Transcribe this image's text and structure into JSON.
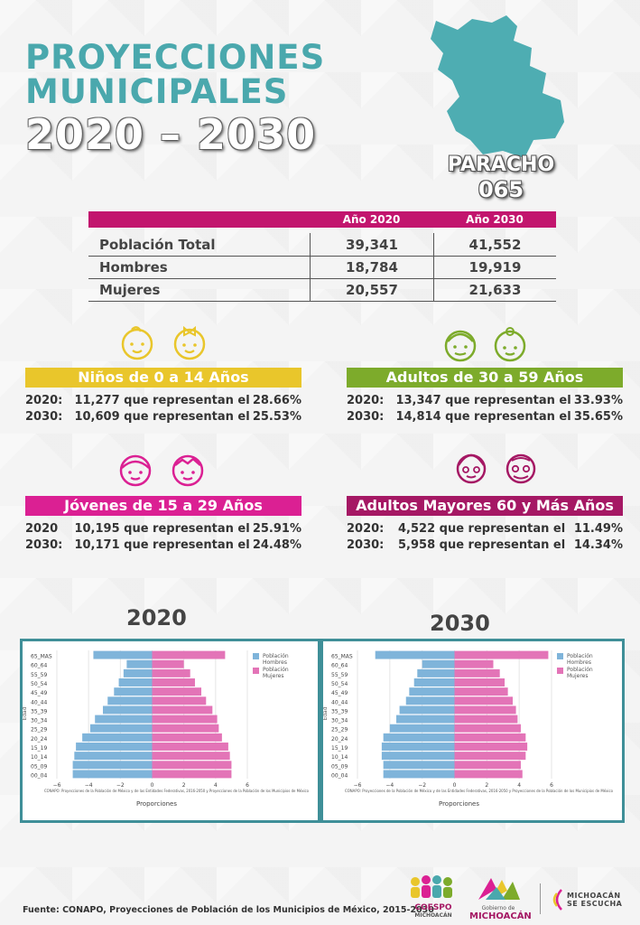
{
  "header": {
    "title_line1": "PROYECCIONES",
    "title_line2": "MUNICIPALES",
    "title_line3": "2020 – 2030"
  },
  "municipality": {
    "name": "PARACHO",
    "code": "065"
  },
  "population_table": {
    "col_2020": "Año 2020",
    "col_2030": "Año 2030",
    "rows": [
      {
        "label": "Población Total",
        "v2020": "39,341",
        "v2030": "41,552"
      },
      {
        "label": "Hombres",
        "v2020": "18,784",
        "v2030": "19,919"
      },
      {
        "label": "Mujeres",
        "v2020": "20,557",
        "v2030": "21,633"
      }
    ]
  },
  "age_groups": [
    {
      "title": "Niños de 0 a 14 Años",
      "color": "#e9c62b",
      "lines": [
        {
          "year": "2020:",
          "text": "11,277 que representan el",
          "pct": "28.66%"
        },
        {
          "year": "2030:",
          "text": "10,609 que representan el",
          "pct": "25.53%"
        }
      ]
    },
    {
      "title": "Adultos de 30 a 59 Años",
      "color": "#7dab2b",
      "lines": [
        {
          "year": "2020:",
          "text": "13,347 que representan el",
          "pct": "33.93%"
        },
        {
          "year": "2030:",
          "text": "14,814 que representan el",
          "pct": "35.65%"
        }
      ]
    },
    {
      "title": "Jóvenes de 15 a 29 Años",
      "color": "#db2093",
      "lines": [
        {
          "year": "2020",
          "text": "10,195 que representan el",
          "pct": "25.91%"
        },
        {
          "year": "2030:",
          "text": "10,171 que representan el",
          "pct": "24.48%"
        }
      ]
    },
    {
      "title": "Adultos Mayores  60 y Más Años",
      "color": "#a51864",
      "lines": [
        {
          "year": "2020:",
          "text": "4,522 que representan el",
          "pct": "11.49%"
        },
        {
          "year": "2030:",
          "text": "5,958 que representan el",
          "pct": "14.34%"
        }
      ]
    }
  ],
  "icons": [
    "baby-boy-icon",
    "baby-girl-icon",
    "adult-man-icon",
    "adult-woman-icon",
    "young-girl-icon",
    "young-boy-icon",
    "elderly-woman-icon",
    "elderly-man-icon"
  ],
  "chart_data": [
    {
      "type": "bar",
      "title": "2020",
      "orientation": "horizontal-population-pyramid",
      "categories": [
        "00_04",
        "05_09",
        "10_14",
        "15_19",
        "20_24",
        "25_29",
        "30_34",
        "35_39",
        "40_44",
        "45_49",
        "50_54",
        "55_59",
        "60_64",
        "65_MAS"
      ],
      "series": [
        {
          "name": "Población Hombres",
          "color": "#7fb4da",
          "values": [
            -5.0,
            -5.0,
            -4.9,
            -4.8,
            -4.4,
            -3.9,
            -3.6,
            -3.1,
            -2.8,
            -2.4,
            -2.1,
            -1.8,
            -1.6,
            -3.7
          ]
        },
        {
          "name": "Población Mujeres",
          "color": "#e374b7",
          "values": [
            5.0,
            5.0,
            4.9,
            4.8,
            4.4,
            4.2,
            4.1,
            3.8,
            3.4,
            3.1,
            2.7,
            2.4,
            2.0,
            4.6
          ]
        }
      ],
      "xlabel": "Proporciones",
      "ylabel": "Edad",
      "xticks": [
        "−6",
        "−4",
        "−2",
        "0",
        "2",
        "4",
        "6"
      ],
      "xlim": [
        -6,
        6
      ],
      "note": "CONAPO: Proyecciones de la Población de México y de las Entidades Federativas, 2016-2050 y Proyecciones de la Población de los Municipios de México",
      "legend": "top-right"
    },
    {
      "type": "bar",
      "title": "2030",
      "orientation": "horizontal-population-pyramid",
      "categories": [
        "00_04",
        "05_09",
        "10_14",
        "15_19",
        "20_24",
        "25_29",
        "30_34",
        "35_39",
        "40_44",
        "45_49",
        "50_54",
        "55_59",
        "60_64",
        "65_MAS"
      ],
      "series": [
        {
          "name": "Población Hombres",
          "color": "#7fb4da",
          "values": [
            -4.4,
            -4.4,
            -4.5,
            -4.5,
            -4.4,
            -4.0,
            -3.6,
            -3.4,
            -3.0,
            -2.8,
            -2.5,
            -2.3,
            -2.0,
            -4.9
          ]
        },
        {
          "name": "Población Mujeres",
          "color": "#e374b7",
          "values": [
            4.2,
            4.1,
            4.4,
            4.5,
            4.4,
            4.1,
            3.9,
            3.8,
            3.6,
            3.3,
            3.1,
            2.8,
            2.4,
            5.8
          ]
        }
      ],
      "xlabel": "Proporciones",
      "ylabel": "Edad",
      "xticks": [
        "−6",
        "−4",
        "−2",
        "0",
        "2",
        "4",
        "6"
      ],
      "xlim": [
        -6,
        6
      ],
      "note": "CONAPO: Proyecciones de la Población de México y de las Entidades Federativas, 2016-2050 y Proyecciones de la Población de los Municipios de México",
      "legend": "top-right"
    }
  ],
  "legend": {
    "men_line1": "Población",
    "men_line2": "Hombres",
    "women_line1": "Población",
    "women_line2": "Mujeres"
  },
  "footer": {
    "source": "Fuente: CONAPO, Proyecciones de Población de los Municipios de México, 2015-2030",
    "logo1_line1": "COESPO",
    "logo1_line2": "MICHOACÁN",
    "logo2_line1": "Gobierno de",
    "logo2_line2": "MICHOACÁN",
    "logo3_line1": "MICHOACÁN",
    "logo3_line2": "SE ESCUCHA"
  }
}
